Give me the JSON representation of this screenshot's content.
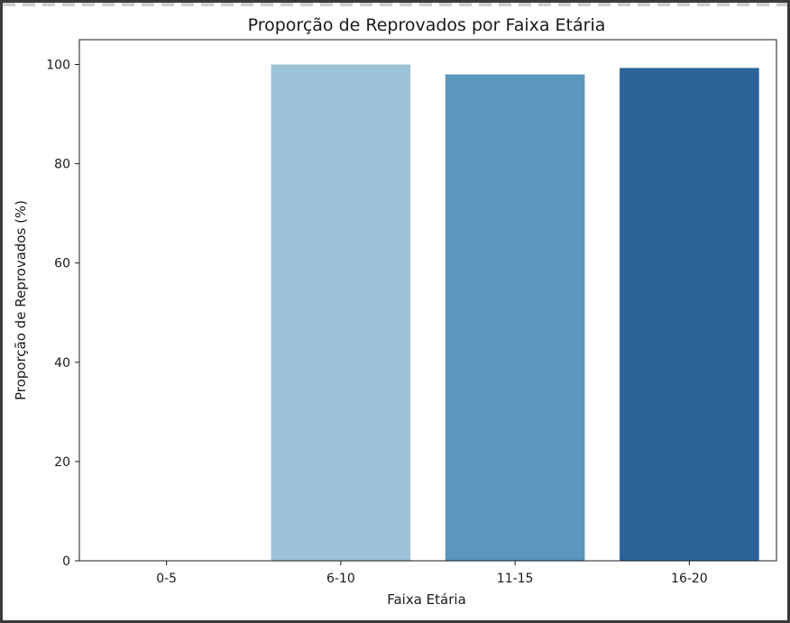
{
  "chart_data": {
    "type": "bar",
    "title": "Proporção de Reprovados por Faixa Etária",
    "xlabel": "Faixa Etária",
    "ylabel": "Proporção de Reprovados (%)",
    "categories": [
      "0-5",
      "6-10",
      "11-15",
      "16-20"
    ],
    "values": [
      0,
      100,
      98,
      99.3
    ],
    "colors": [
      "#ffffff",
      "#9ec2d7",
      "#5b96bc",
      "#2b6399"
    ],
    "ylim": [
      0,
      105
    ],
    "yticks": [
      0,
      20,
      40,
      60,
      80,
      100
    ],
    "grid": false
  }
}
